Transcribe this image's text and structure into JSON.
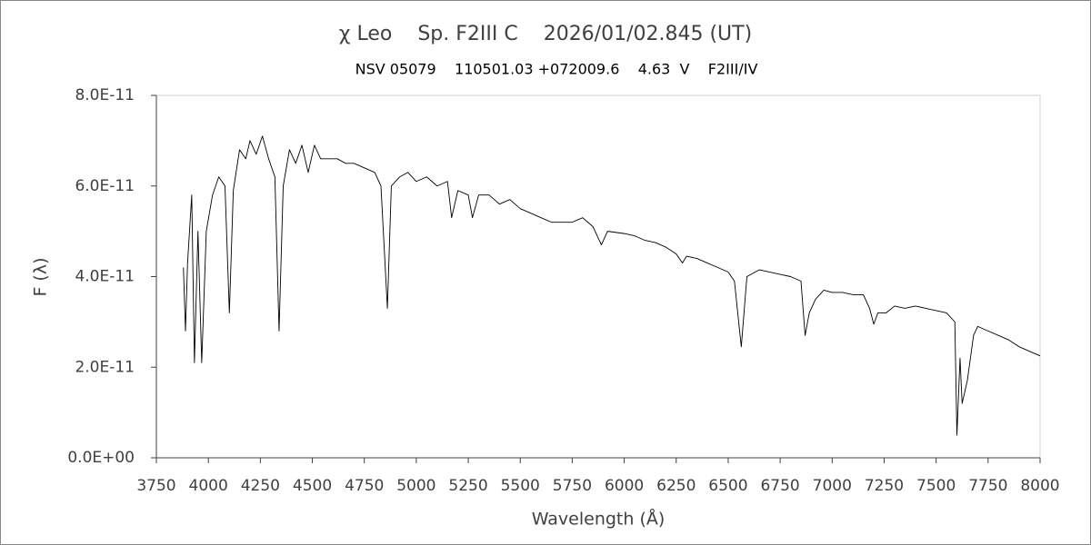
{
  "chart_data": {
    "type": "line",
    "title": "χ Leo    Sp. F2III C    2026/01/02.845 (UT)",
    "subtitle": "NSV 05079    110501.03 +072009.6    4.63  V    F2III/IV",
    "x_label": "Wavelength (Å)",
    "y_label": "F (λ)",
    "color": "#000000",
    "xlim": [
      3750,
      8000
    ],
    "xticks": [
      3750,
      4000,
      4250,
      4500,
      4750,
      5000,
      5250,
      5500,
      5750,
      6000,
      6250,
      6500,
      6750,
      7000,
      7250,
      7500,
      7750,
      8000
    ],
    "ylim": [
      0,
      8e-11
    ],
    "yticks": [
      {
        "value": 0,
        "label": "0.0E+00"
      },
      {
        "value": 2e-11,
        "label": "2.0E-11"
      },
      {
        "value": 4e-11,
        "label": "4.0E-11"
      },
      {
        "value": 6e-11,
        "label": "6.0E-11"
      },
      {
        "value": 8e-11,
        "label": "8.0E-11"
      }
    ],
    "x": [
      3880,
      3890,
      3900,
      3920,
      3933,
      3950,
      3968,
      3990,
      4020,
      4050,
      4080,
      4101,
      4120,
      4150,
      4180,
      4200,
      4230,
      4260,
      4290,
      4320,
      4340,
      4360,
      4390,
      4420,
      4450,
      4480,
      4510,
      4540,
      4580,
      4620,
      4660,
      4700,
      4750,
      4800,
      4830,
      4861,
      4880,
      4920,
      4960,
      5000,
      5050,
      5100,
      5150,
      5170,
      5200,
      5250,
      5270,
      5300,
      5350,
      5400,
      5450,
      5500,
      5550,
      5600,
      5650,
      5700,
      5750,
      5800,
      5850,
      5890,
      5920,
      6000,
      6050,
      6100,
      6150,
      6200,
      6250,
      6280,
      6300,
      6350,
      6400,
      6450,
      6500,
      6530,
      6563,
      6590,
      6650,
      6700,
      6750,
      6800,
      6850,
      6870,
      6890,
      6920,
      6960,
      7000,
      7050,
      7100,
      7150,
      7180,
      7200,
      7220,
      7260,
      7300,
      7350,
      7400,
      7450,
      7500,
      7550,
      7590,
      7600,
      7615,
      7625,
      7650,
      7680,
      7700,
      7750,
      7800,
      7850,
      7900,
      7950,
      8000
    ],
    "values": [
      4.2e-11,
      2.8e-11,
      4.3e-11,
      5.8e-11,
      2.1e-11,
      5e-11,
      2.1e-11,
      5e-11,
      5.8e-11,
      6.2e-11,
      6e-11,
      3.2e-11,
      5.9e-11,
      6.8e-11,
      6.6e-11,
      7e-11,
      6.7e-11,
      7.1e-11,
      6.6e-11,
      6.2e-11,
      2.8e-11,
      6e-11,
      6.8e-11,
      6.5e-11,
      6.9e-11,
      6.3e-11,
      6.9e-11,
      6.6e-11,
      6.6e-11,
      6.6e-11,
      6.5e-11,
      6.5e-11,
      6.4e-11,
      6.3e-11,
      6e-11,
      3.3e-11,
      6e-11,
      6.2e-11,
      6.3e-11,
      6.1e-11,
      6.2e-11,
      6e-11,
      6.1e-11,
      5.3e-11,
      5.9e-11,
      5.8e-11,
      5.3e-11,
      5.8e-11,
      5.8e-11,
      5.6e-11,
      5.7e-11,
      5.5e-11,
      5.4e-11,
      5.3e-11,
      5.2e-11,
      5.2e-11,
      5.2e-11,
      5.3e-11,
      5.1e-11,
      4.7e-11,
      5e-11,
      4.95e-11,
      4.9e-11,
      4.8e-11,
      4.75e-11,
      4.65e-11,
      4.5e-11,
      4.3e-11,
      4.45e-11,
      4.4e-11,
      4.3e-11,
      4.2e-11,
      4.1e-11,
      3.9e-11,
      2.45e-11,
      4e-11,
      4.15e-11,
      4.1e-11,
      4.05e-11,
      4e-11,
      3.9e-11,
      2.7e-11,
      3.2e-11,
      3.5e-11,
      3.7e-11,
      3.65e-11,
      3.65e-11,
      3.6e-11,
      3.6e-11,
      3.3e-11,
      2.95e-11,
      3.2e-11,
      3.2e-11,
      3.35e-11,
      3.3e-11,
      3.35e-11,
      3.3e-11,
      3.25e-11,
      3.2e-11,
      3e-11,
      5e-12,
      2.2e-11,
      1.2e-11,
      1.7e-11,
      2.7e-11,
      2.9e-11,
      2.8e-11,
      2.7e-11,
      2.6e-11,
      2.45e-11,
      2.35e-11,
      2.25e-11
    ]
  }
}
